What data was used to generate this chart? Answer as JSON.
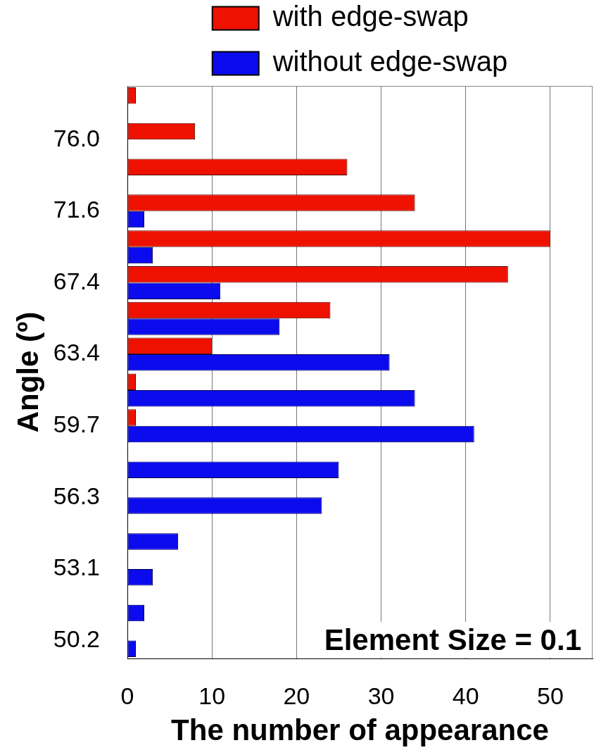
{
  "chart_data": {
    "type": "bar",
    "orientation": "horizontal",
    "categories": [
      null,
      "76.0",
      null,
      "71.6",
      null,
      "67.4",
      null,
      "63.4",
      null,
      "59.7",
      null,
      "56.3",
      null,
      "53.1",
      null,
      "50.2"
    ],
    "series": [
      {
        "name": "with edge-swap",
        "color": "#ee1100",
        "values": [
          1,
          8,
          26,
          34,
          50,
          45,
          24,
          10,
          1,
          1,
          0,
          0,
          0,
          0,
          0,
          0
        ]
      },
      {
        "name": "without edge-swap",
        "color": "#0b0bee",
        "values": [
          0,
          0,
          0,
          2,
          3,
          11,
          18,
          31,
          34,
          41,
          25,
          23,
          6,
          3,
          2,
          1
        ]
      }
    ],
    "xlim": [
      0,
      55
    ],
    "xticks": [
      0,
      10,
      20,
      30,
      40,
      50
    ],
    "xlabel": "The number of appearance",
    "ylabel": "Angle (º)",
    "grid": "x",
    "legend": "top",
    "annotations": [
      "Element Size = 0.1"
    ]
  }
}
